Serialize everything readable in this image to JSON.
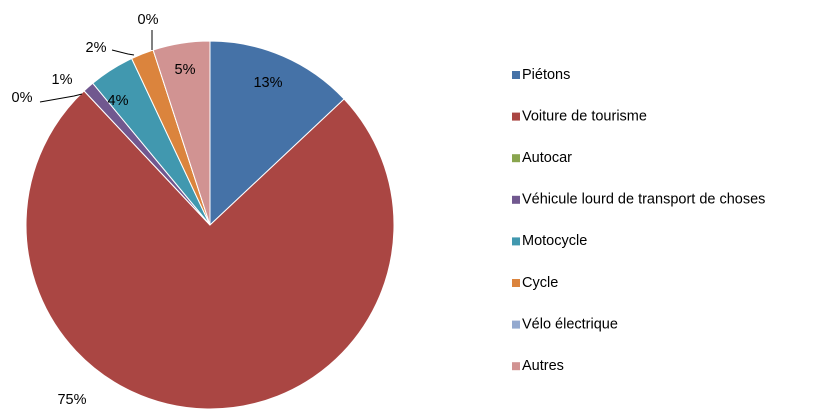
{
  "chart_data": {
    "type": "pie",
    "categories": [
      "Piétons",
      "Voiture de tourisme",
      "Autocar",
      "Véhicule lourd de transport de choses",
      "Motocycle",
      "Cycle",
      "Vélo électrique",
      "Autres"
    ],
    "values": [
      13,
      75,
      0,
      1,
      4,
      2,
      0,
      5
    ],
    "value_labels": [
      "13%",
      "75%",
      "0%",
      "1%",
      "4%",
      "2%",
      "0%",
      "5%"
    ],
    "colors": [
      "#4572a7",
      "#aa4643",
      "#89a54e",
      "#71588f",
      "#4198af",
      "#db843d",
      "#93a9cf",
      "#d19392"
    ],
    "legend": "right"
  }
}
